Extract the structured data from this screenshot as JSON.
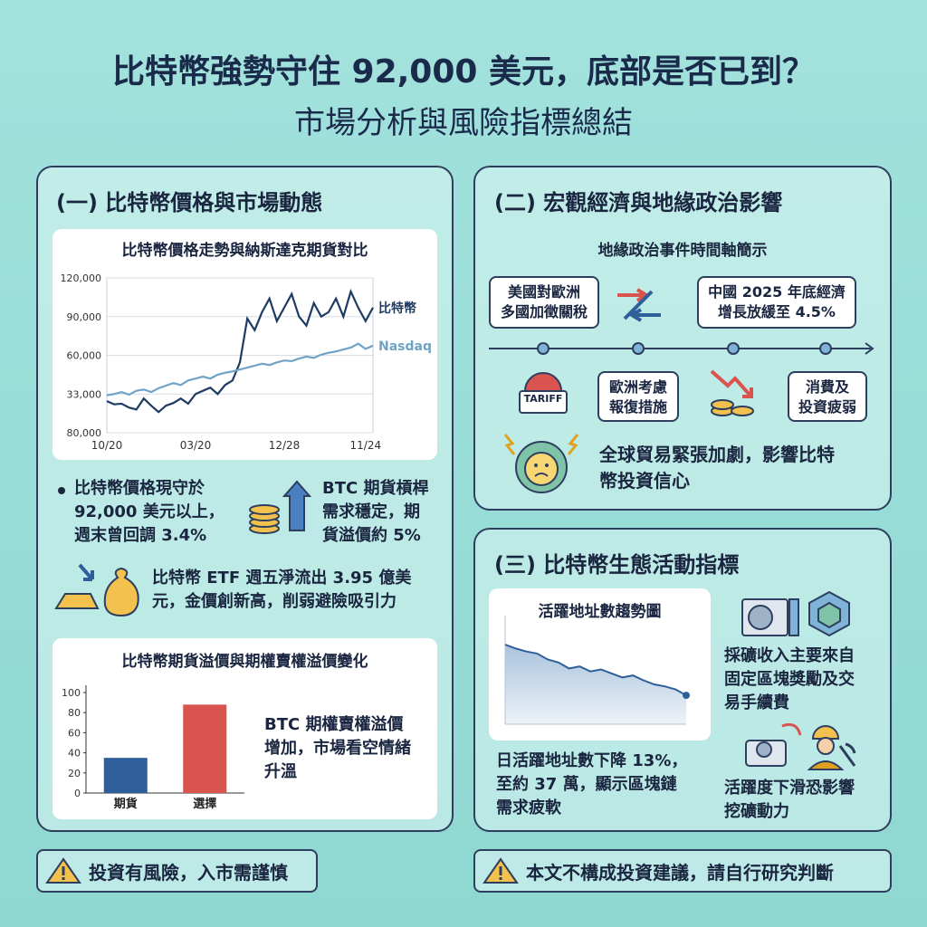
{
  "header": {
    "title": "比特幣強勢守住 92,000 美元，底部是否已到？",
    "subtitle": "市場分析與風險指標總結"
  },
  "section1": {
    "heading": "(一) 比特幣價格與市場動態",
    "price_chart": {
      "type": "line",
      "title": "比特幣價格走勢與納斯達克期貨對比",
      "categories": [
        "10/20",
        null,
        null,
        null,
        null,
        null,
        null,
        null,
        null,
        null,
        null,
        null,
        "03/20",
        null,
        null,
        null,
        null,
        null,
        null,
        null,
        null,
        null,
        null,
        null,
        "12/28",
        null,
        null,
        null,
        null,
        null,
        null,
        null,
        null,
        null,
        null,
        "11/24",
        null
      ],
      "series": [
        {
          "name": "比特幣",
          "color": "#1f3b63",
          "values": [
            24500,
            22000,
            22500,
            19500,
            18000,
            26500,
            21000,
            16000,
            21000,
            23000,
            26500,
            22500,
            30000,
            32500,
            35000,
            30000,
            37000,
            40500,
            54500,
            88500,
            79500,
            93500,
            104000,
            86500,
            97000,
            107500,
            90000,
            83000,
            100500,
            90000,
            93500,
            104000,
            90000,
            109500,
            97000,
            86500,
            97000
          ]
        },
        {
          "name": "Nasdaq",
          "color": "#6fa3c7",
          "values": [
            29000,
            30000,
            31500,
            29500,
            32500,
            33500,
            31500,
            34500,
            36500,
            38500,
            37000,
            40500,
            42000,
            43500,
            42000,
            45000,
            46500,
            47500,
            49000,
            50500,
            52000,
            53500,
            52500,
            54500,
            56000,
            55500,
            57500,
            59000,
            58000,
            60500,
            62000,
            63000,
            64500,
            66000,
            69000,
            65000,
            67500
          ]
        }
      ],
      "ylim": [
        0,
        120000
      ],
      "y_labels": [
        "120,000",
        "90,000",
        "60,000",
        "33,000",
        "80,000"
      ],
      "grid": true
    },
    "bullet": [
      "比特幣價格現守於",
      "92,000 美元以上，",
      "週末曾回調 3.4%"
    ],
    "btc_note": [
      "BTC 期貨槓桿",
      "需求穩定，期",
      "貨溢價約 5%"
    ],
    "etf_note": [
      "比特幣 ETF 週五淨流出 3.95 億美",
      "元，金價創新高，削弱避險吸引力"
    ],
    "premium_chart": {
      "type": "bar",
      "title": "比特幣期貨溢價與期權賣權溢價變化",
      "categories": [
        "期貨",
        "選擇"
      ],
      "values": [
        35,
        88
      ],
      "colors": [
        "#2e5f9a",
        "#d9534f"
      ],
      "ylim": [
        0,
        100
      ],
      "yticks": [
        0,
        20,
        40,
        60,
        80,
        100
      ]
    },
    "premium_note": [
      "BTC 期權賣權溢價",
      "增加，市場看空情緒",
      "升溫"
    ]
  },
  "section2": {
    "heading": "(二) 宏觀經濟與地緣政治影響",
    "timeline_title": "地緣政治事件時間軸簡示",
    "event_1": [
      "美國對歐洲",
      "多國加徵關稅"
    ],
    "event_2": [
      "中國 2025 年底經濟",
      "增長放緩至 4.5%"
    ],
    "event_3": [
      "歐洲考慮",
      "報復措施"
    ],
    "event_4": [
      "消費及",
      "投資疲弱"
    ],
    "tariff_label": "TARIFF",
    "summary": [
      "全球貿易緊張加劇，影響比特",
      "幣投資信心"
    ]
  },
  "section3": {
    "heading": "(三) 比特幣生態活動指標",
    "address_chart": {
      "type": "area",
      "title": "活躍地址數趨勢圖",
      "color": "#2e5f9a",
      "values": [
        80,
        76,
        73,
        71,
        65,
        62,
        56,
        58,
        53,
        55,
        51,
        47,
        49,
        44,
        40,
        38,
        35,
        29
      ],
      "ylim": [
        0,
        100
      ]
    },
    "address_note": [
      "日活躍地址數下降 13%，",
      "至約 37 萬，顯示區塊鏈",
      "需求疲軟"
    ],
    "mining_note": [
      "採礦收入主要來自",
      "固定區塊獎勵及交",
      "易手續費"
    ],
    "activity_note": [
      "活躍度下滑恐影響",
      "挖礦動力"
    ]
  },
  "footer": {
    "left": "投資有風險，入市需謹慎",
    "right": "本文不構成投資建議，請自行研究判斷"
  }
}
